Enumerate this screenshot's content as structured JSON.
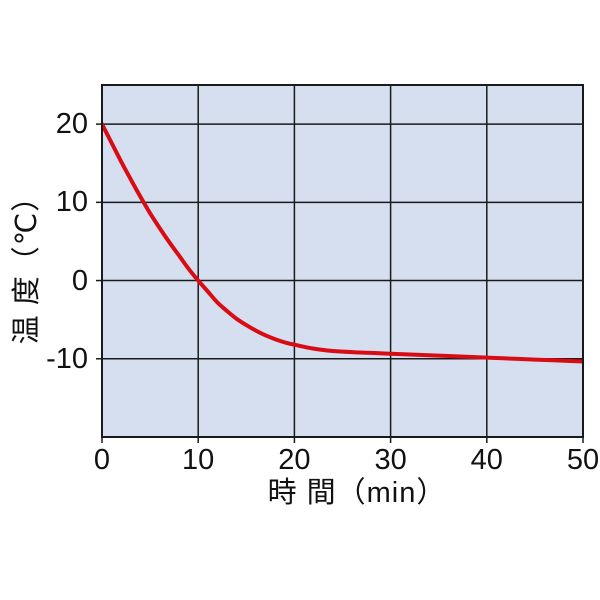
{
  "page": {
    "background_color": "#ffffff"
  },
  "chart_data": {
    "type": "line",
    "title": "",
    "xlabel": "時 間（min）",
    "ylabel": "温 度（℃）",
    "xlim": [
      0,
      50
    ],
    "ylim": [
      -20,
      25
    ],
    "xticks": [
      0,
      10,
      20,
      30,
      40,
      50
    ],
    "yticks": [
      20,
      10,
      0,
      -10
    ],
    "x_gridlines": [
      10,
      20,
      30,
      40
    ],
    "y_gridlines": [
      20,
      10,
      0,
      -10
    ],
    "grid": true,
    "legend": false,
    "plot_bg_color": "#d5dff0",
    "grid_color": "#1a1a1a",
    "axis_color": "#1a1a1a",
    "text_color": "#111111",
    "series": [
      {
        "name": "cooling-curve",
        "color": "#d80c12",
        "stroke_width": 4,
        "points": [
          [
            0,
            20
          ],
          [
            1,
            17.6
          ],
          [
            2,
            15.2
          ],
          [
            3,
            12.9
          ],
          [
            4,
            10.7
          ],
          [
            5,
            8.6
          ],
          [
            6,
            6.7
          ],
          [
            7,
            4.9
          ],
          [
            8,
            3.2
          ],
          [
            9,
            1.5
          ],
          [
            10,
            0
          ],
          [
            11,
            -1.4
          ],
          [
            12,
            -2.8
          ],
          [
            13,
            -3.9
          ],
          [
            14,
            -4.9
          ],
          [
            15,
            -5.7
          ],
          [
            16,
            -6.4
          ],
          [
            17,
            -7.0
          ],
          [
            18,
            -7.5
          ],
          [
            19,
            -7.9
          ],
          [
            20,
            -8.2
          ],
          [
            22,
            -8.7
          ],
          [
            24,
            -9.0
          ],
          [
            26,
            -9.15
          ],
          [
            28,
            -9.25
          ],
          [
            30,
            -9.35
          ],
          [
            33,
            -9.5
          ],
          [
            36,
            -9.65
          ],
          [
            40,
            -9.85
          ],
          [
            45,
            -10.1
          ],
          [
            50,
            -10.35
          ]
        ]
      }
    ]
  }
}
